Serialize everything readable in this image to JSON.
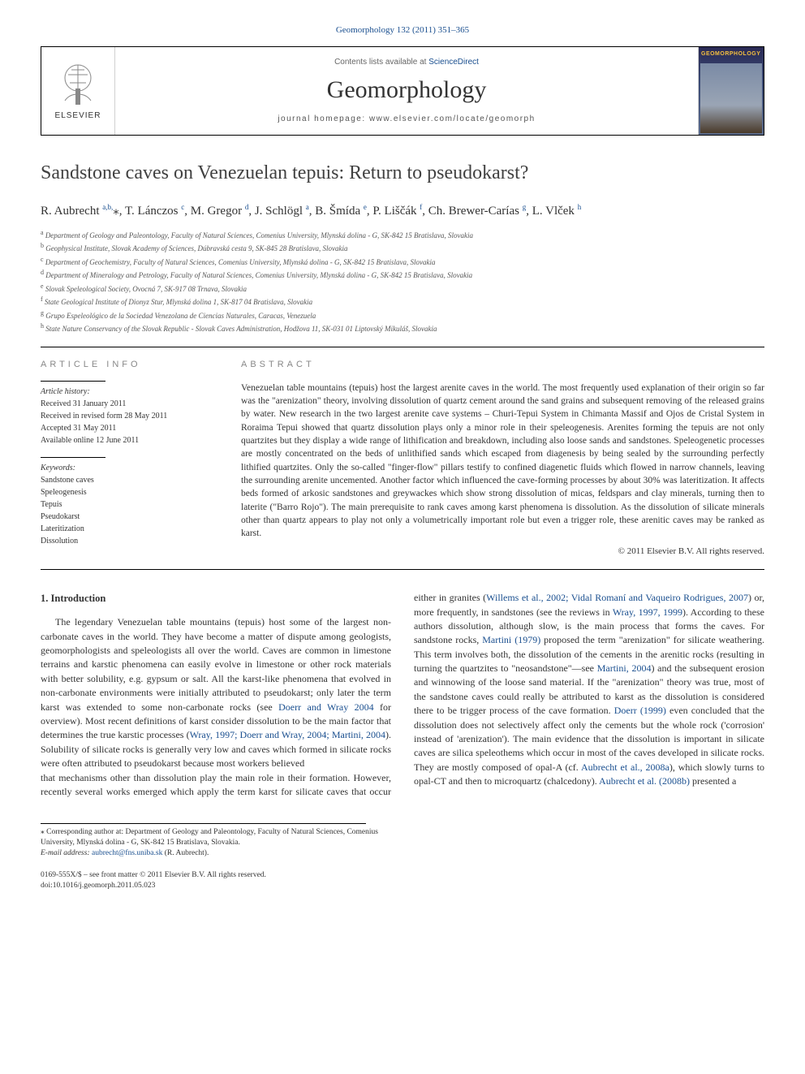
{
  "journal_ref": "Geomorphology 132 (2011) 351–365",
  "header": {
    "contents_prefix": "Contents lists available at ",
    "contents_link": "ScienceDirect",
    "journal_name": "Geomorphology",
    "homepage_prefix": "journal homepage: ",
    "homepage_url": "www.elsevier.com/locate/geomorph",
    "elsevier_label": "ELSEVIER",
    "cover_label": "GEOMORPHOLOGY"
  },
  "title": "Sandstone caves on Venezuelan tepuis: Return to pseudokarst?",
  "authors_html": "R. Aubrecht <sup>a,b,</sup><span class='star'>⁎</span>, T. Lánczos <sup>c</sup>, M. Gregor <sup>d</sup>, J. Schlögl <sup>a</sup>, B. Šmída <sup>e</sup>, P. Liščák <sup>f</sup>, Ch. Brewer-Carías <sup>g</sup>, L. Vlček <sup>h</sup>",
  "affiliations": [
    {
      "sup": "a",
      "text": "Department of Geology and Paleontology, Faculty of Natural Sciences, Comenius University, Mlynská dolina - G, SK-842 15 Bratislava, Slovakia"
    },
    {
      "sup": "b",
      "text": "Geophysical Institute, Slovak Academy of Sciences, Dúbravská cesta 9, SK-845 28 Bratislava, Slovakia"
    },
    {
      "sup": "c",
      "text": "Department of Geochemistry, Faculty of Natural Sciences, Comenius University, Mlynská dolina - G, SK-842 15 Bratislava, Slovakia"
    },
    {
      "sup": "d",
      "text": "Department of Mineralogy and Petrology, Faculty of Natural Sciences, Comenius University, Mlynská dolina - G, SK-842 15 Bratislava, Slovakia"
    },
    {
      "sup": "e",
      "text": "Slovak Speleological Society, Ovocná 7, SK-917 08 Trnava, Slovakia"
    },
    {
      "sup": "f",
      "text": "State Geological Institute of Dionyz Stur, Mlynská dolina 1, SK-817 04 Bratislava, Slovakia"
    },
    {
      "sup": "g",
      "text": "Grupo Espeleológico de la Sociedad Venezolana de Ciencias Naturales, Caracas, Venezuela"
    },
    {
      "sup": "h",
      "text": "State Nature Conservancy of the Slovak Republic - Slovak Caves Administration, Hodžova 11, SK-031 01 Liptovský Mikuláš, Slovakia"
    }
  ],
  "article_info": {
    "heading": "article info",
    "history_label": "Article history:",
    "received": "Received 31 January 2011",
    "revised": "Received in revised form 28 May 2011",
    "accepted": "Accepted 31 May 2011",
    "online": "Available online 12 June 2011",
    "keywords_label": "Keywords:",
    "keywords": [
      "Sandstone caves",
      "Speleogenesis",
      "Tepuis",
      "Pseudokarst",
      "Lateritization",
      "Dissolution"
    ]
  },
  "abstract": {
    "heading": "abstract",
    "text": "Venezuelan table mountains (tepuis) host the largest arenite caves in the world. The most frequently used explanation of their origin so far was the \"arenization\" theory, involving dissolution of quartz cement around the sand grains and subsequent removing of the released grains by water. New research in the two largest arenite cave systems – Churi-Tepui System in Chimanta Massif and Ojos de Cristal System in Roraima Tepui showed that quartz dissolution plays only a minor role in their speleogenesis. Arenites forming the tepuis are not only quartzites but they display a wide range of lithification and breakdown, including also loose sands and sandstones. Speleogenetic processes are mostly concentrated on the beds of unlithified sands which escaped from diagenesis by being sealed by the surrounding perfectly lithified quartzites. Only the so-called \"finger-flow\" pillars testify to confined diagenetic fluids which flowed in narrow channels, leaving the surrounding arenite uncemented. Another factor which influenced the cave-forming processes by about 30% was lateritization. It affects beds formed of arkosic sandstones and greywackes which show strong dissolution of micas, feldspars and clay minerals, turning then to laterite (\"Barro Rojo\"). The main prerequisite to rank caves among karst phenomena is dissolution. As the dissolution of silicate minerals other than quartz appears to play not only a volumetrically important role but even a trigger role, these arenitic caves may be ranked as karst.",
    "copyright": "© 2011 Elsevier B.V. All rights reserved."
  },
  "intro": {
    "heading": "1. Introduction",
    "para1_html": "The legendary Venezuelan table mountains (tepuis) host some of the largest non-carbonate caves in the world. They have become a matter of dispute among geologists, geomorphologists and speleologists all over the world. Caves are common in limestone terrains and karstic phenomena can easily evolve in limestone or other rock materials with better solubility, e.g. gypsum or salt. All the karst-like phenomena that evolved in non-carbonate environments were initially attributed to pseudokarst; only later the term karst was extended to some non-carbonate rocks (see <span class='cite'>Doerr and Wray 2004</span> for overview). Most recent definitions of karst consider dissolution to be the main factor that determines the true karstic processes (<span class='cite'>Wray, 1997; Doerr and Wray, 2004; Martini, 2004</span>). Solubility of silicate rocks is generally very low and caves which formed in silicate rocks were often attributed to pseudokarst because most workers believed",
    "para2_html": "that mechanisms other than dissolution play the main role in their formation. However, recently several works emerged which apply the term karst for silicate caves that occur either in granites (<span class='cite'>Willems et al., 2002; Vidal Romaní and Vaqueiro Rodrigues, 2007</span>) or, more frequently, in sandstones (see the reviews in <span class='cite'>Wray, 1997, 1999</span>). According to these authors dissolution, although slow, is the main process that forms the caves. For sandstone rocks, <span class='cite'>Martini (1979)</span> proposed the term \"arenization\" for silicate weathering. This term involves both, the dissolution of the cements in the arenitic rocks (resulting in turning the quartzites to \"neosandstone\"—see <span class='cite'>Martini, 2004</span>) and the subsequent erosion and winnowing of the loose sand material. If the \"arenization\" theory was true, most of the sandstone caves could really be attributed to karst as the dissolution is considered there to be trigger process of the cave formation. <span class='cite'>Doerr (1999)</span> even concluded that the dissolution does not selectively affect only the cements but the whole rock ('corrosion' instead of 'arenization'). The main evidence that the dissolution is important in silicate caves are silica speleothems which occur in most of the caves developed in silicate rocks. They are mostly composed of opal-A (cf. <span class='cite'>Aubrecht et al., 2008a</span>), which slowly turns to opal-CT and then to microquartz (chalcedony). <span class='cite'>Aubrecht et al. (2008b)</span> presented a"
  },
  "footnote": {
    "corr_text": "⁎ Corresponding author at: Department of Geology and Paleontology, Faculty of Natural Sciences, Comenius University, Mlynská dolina - G, SK-842 15 Bratislava, Slovakia.",
    "email_label": "E-mail address:",
    "email": "aubrecht@fns.uniba.sk",
    "email_who": "(R. Aubrecht)."
  },
  "bottom": {
    "left1": "0169-555X/$ – see front matter © 2011 Elsevier B.V. All rights reserved.",
    "left2": "doi:10.1016/j.geomorph.2011.05.023"
  },
  "colors": {
    "link": "#1a4f8f",
    "text": "#333333",
    "heading_grey": "#888888",
    "rule": "#000000"
  }
}
